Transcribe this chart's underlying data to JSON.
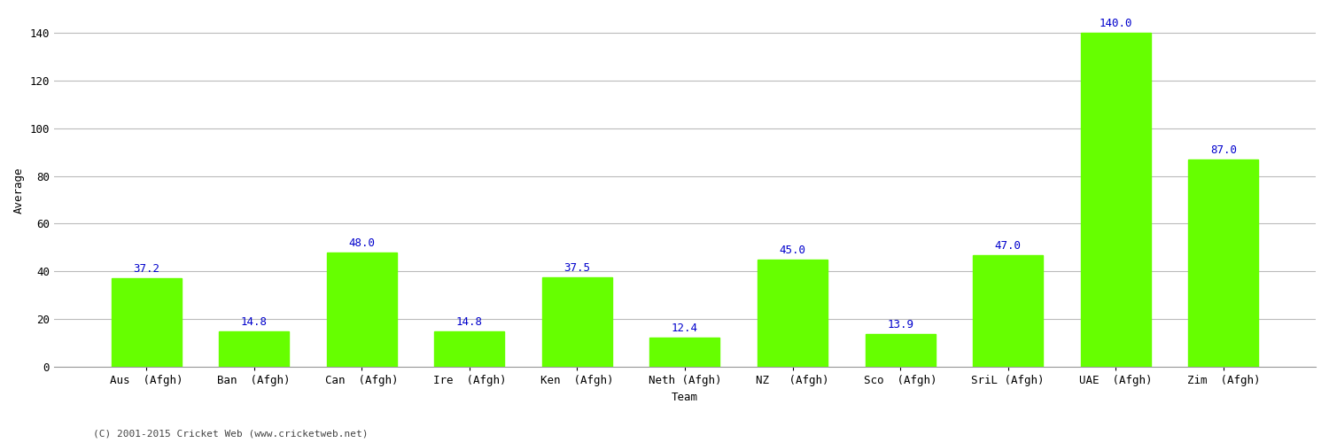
{
  "categories": [
    "Aus  (Afgh)",
    "Ban  (Afgh)",
    "Can  (Afgh)",
    "Ire  (Afgh)",
    "Ken  (Afgh)",
    "Neth (Afgh)",
    "NZ   (Afgh)",
    "Sco  (Afgh)",
    "SriL (Afgh)",
    "UAE  (Afgh)",
    "Zim  (Afgh)"
  ],
  "values": [
    37.2,
    14.8,
    48.0,
    14.8,
    37.5,
    12.4,
    45.0,
    13.9,
    47.0,
    140.0,
    87.0
  ],
  "bar_color": "#66ff00",
  "bar_edge_color": "#66ff00",
  "xlabel": "Team",
  "ylabel": "Average",
  "ylim_max": 148,
  "yticks": [
    0,
    20,
    40,
    60,
    80,
    100,
    120,
    140
  ],
  "annotation_color": "#0000cc",
  "annotation_fontsize": 9,
  "axis_label_fontsize": 9,
  "tick_label_fontsize": 9,
  "grid_color": "#bbbbbb",
  "background_color": "#ffffff",
  "footer_text": "(C) 2001-2015 Cricket Web (www.cricketweb.net)",
  "footer_fontsize": 8,
  "footer_color": "#444444",
  "bar_width": 0.65
}
